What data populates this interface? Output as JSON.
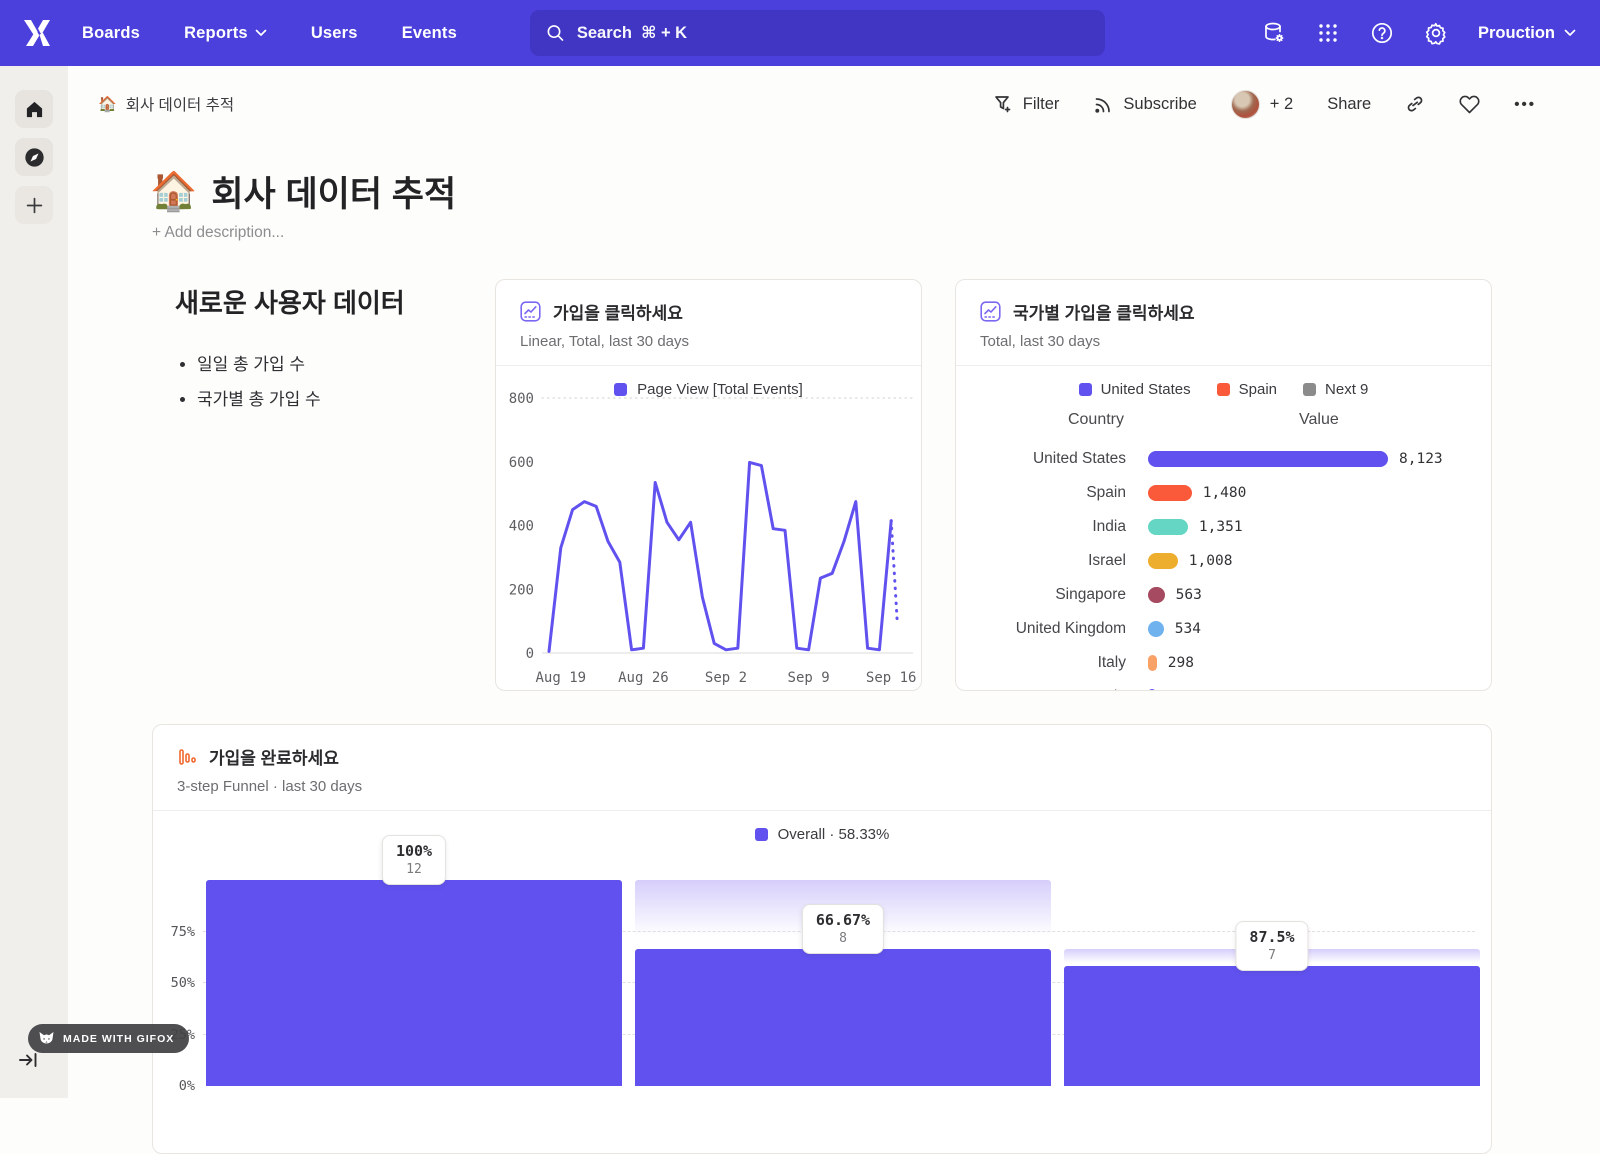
{
  "nav": {
    "menu": [
      "Boards",
      "Reports",
      "Users",
      "Events"
    ],
    "search_placeholder": "Search  ⌘ + K",
    "project_name": "Prouction"
  },
  "toolbar": {
    "breadcrumb_emoji": "🏠",
    "breadcrumb": "회사 데이터 추적",
    "filter": "Filter",
    "subscribe": "Subscribe",
    "avatar_overflow": "+ 2",
    "share": "Share",
    "more": "•••"
  },
  "page": {
    "emoji": "🏠",
    "title": "회사 데이터 추적",
    "add_description": "+ Add description..."
  },
  "text_card": {
    "heading": "새로운 사용자 데이터",
    "bullets": [
      "일일 총 가입 수",
      "국가별 총 가입 수"
    ]
  },
  "line_card": {
    "title": "가입을 클릭하세요",
    "subtitle": "Linear, Total, last 30 days",
    "legend": "Page View [Total Events]"
  },
  "country_card": {
    "title": "국가별 가입을 클릭하세요",
    "subtitle": "Total, last 30 days",
    "columns": {
      "country": "Country",
      "value": "Value"
    },
    "legend": [
      {
        "label": "United States",
        "color": "#6152f0"
      },
      {
        "label": "Spain",
        "color": "#fa5a39"
      },
      {
        "label": "Next 9",
        "color": "#8b8b8b"
      }
    ]
  },
  "funnel_card": {
    "title": "가입을 완료하세요",
    "subtitle": "3-step Funnel · last 30 days",
    "legend": "Overall · 58.33%"
  },
  "badge": {
    "label": "MADE WITH GIFOX"
  },
  "chart_data": [
    {
      "type": "line",
      "title": "가입을 클릭하세요",
      "subtitle": "Linear, Total, last 30 days",
      "legend_position": "top-center",
      "grid": "dotted top gridline + solid baseline",
      "ylim": [
        0,
        800
      ],
      "yticks": [
        0,
        200,
        400,
        600,
        800
      ],
      "x_tick_labels": [
        "Aug 19",
        "Aug 26",
        "Sep 2",
        "Sep 9",
        "Sep 16"
      ],
      "x_tick_indices": [
        1,
        8,
        15,
        22,
        29
      ],
      "dotted_tail_points": 1,
      "series": [
        {
          "name": "Page View [Total Events]",
          "color": "#6152f0",
          "values": [
            5,
            330,
            450,
            475,
            460,
            350,
            285,
            10,
            15,
            535,
            410,
            355,
            410,
            175,
            30,
            10,
            15,
            598,
            588,
            390,
            385,
            15,
            10,
            235,
            250,
            350,
            475,
            15,
            10,
            415,
            100
          ]
        }
      ]
    },
    {
      "type": "bar",
      "orientation": "horizontal",
      "title": "국가별 가입을 클릭하세요",
      "subtitle": "Total, last 30 days",
      "xlabel": "Value",
      "ylabel": "Country",
      "categories": [
        "United States",
        "Spain",
        "India",
        "Israel",
        "Singapore",
        "United Kingdom",
        "Italy"
      ],
      "values": [
        8123,
        1480,
        1351,
        1008,
        563,
        534,
        298
      ],
      "value_labels": [
        "8,123",
        "1,480",
        "1,351",
        "1,008",
        "563",
        "534",
        "298"
      ],
      "colors": [
        "#6152f0",
        "#fa5a39",
        "#65d6c3",
        "#eeae2d",
        "#a54a60",
        "#6fb2ee",
        "#f9a268"
      ],
      "partial_next_row": {
        "category": "Canada",
        "color": "#6152f0"
      }
    },
    {
      "type": "bar",
      "subtype": "funnel",
      "title": "가입을 완료하세요",
      "overall_conversion": "58.33%",
      "bar_color": "#6152f0",
      "yticks_pct": [
        0,
        25,
        50,
        75
      ],
      "ytick_labels": [
        "0%",
        "25%",
        "50%",
        "75%"
      ],
      "steps": [
        {
          "conversion_pct": "100%",
          "count": "12",
          "cumulative_pct": 100
        },
        {
          "conversion_pct": "66.67%",
          "count": "8",
          "cumulative_pct": 66.67
        },
        {
          "conversion_pct": "87.5%",
          "count": "7",
          "cumulative_pct": 58.33
        }
      ]
    }
  ]
}
